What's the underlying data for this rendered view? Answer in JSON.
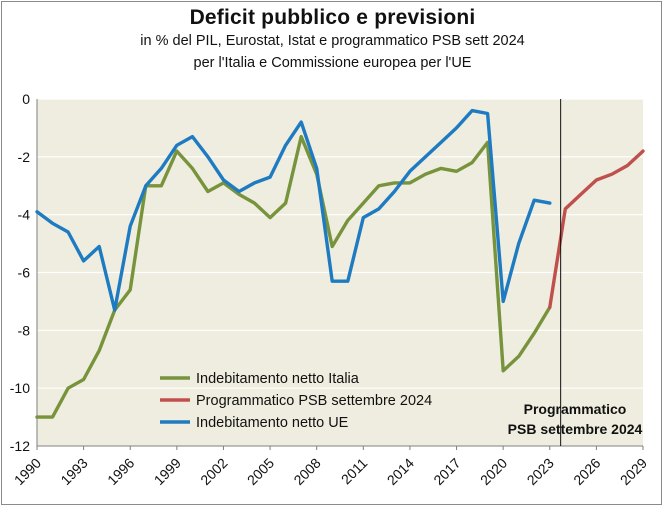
{
  "chart_data": {
    "type": "line",
    "title": "Deficit pubblico  e previsioni",
    "subtitle_lines": [
      "in % del PIL, Eurostat, Istat e programmatico PSB sett 2024",
      "per l'Italia e Commissione europea per l'UE"
    ],
    "xlabel": "",
    "ylabel": "",
    "xlim": [
      1990,
      2029
    ],
    "ylim": [
      -12,
      0
    ],
    "y_ticks": [
      0,
      -2,
      -4,
      -6,
      -8,
      -10,
      -12
    ],
    "x_ticks": [
      1990,
      1993,
      1996,
      1999,
      2002,
      2005,
      2008,
      2011,
      2014,
      2017,
      2020,
      2023,
      2026,
      2029
    ],
    "grid": "horizontal",
    "legend_position": "bottom-left",
    "annotation": {
      "lines": [
        "Programmatico",
        "PSB settembre 2024"
      ],
      "x": 2023.7
    },
    "series": [
      {
        "name": "Indebitamento netto Italia",
        "color": "#77933c",
        "x": [
          1990,
          1991,
          1992,
          1993,
          1994,
          1995,
          1996,
          1997,
          1998,
          1999,
          2000,
          2001,
          2002,
          2003,
          2004,
          2005,
          2006,
          2007,
          2008,
          2009,
          2010,
          2011,
          2012,
          2013,
          2014,
          2015,
          2016,
          2017,
          2018,
          2019,
          2020,
          2021,
          2022,
          2023
        ],
        "values": [
          -11.0,
          -11.0,
          -10.0,
          -9.7,
          -8.7,
          -7.3,
          -6.6,
          -3.0,
          -3.0,
          -1.8,
          -2.4,
          -3.2,
          -2.9,
          -3.3,
          -3.6,
          -4.1,
          -3.6,
          -1.3,
          -2.6,
          -5.1,
          -4.2,
          -3.6,
          -3.0,
          -2.9,
          -2.9,
          -2.6,
          -2.4,
          -2.5,
          -2.2,
          -1.5,
          -9.4,
          -8.9,
          -8.1,
          -7.2
        ]
      },
      {
        "name": "Programmatico PSB settembre 2024",
        "color": "#c0504d",
        "x": [
          2023,
          2024,
          2025,
          2026,
          2027,
          2028,
          2029
        ],
        "values": [
          -7.2,
          -3.8,
          -3.3,
          -2.8,
          -2.6,
          -2.3,
          -1.8
        ]
      },
      {
        "name": "Indebitamento netto UE",
        "color": "#1f7bc1",
        "x": [
          1990,
          1991,
          1992,
          1993,
          1994,
          1995,
          1996,
          1997,
          1998,
          1999,
          2000,
          2001,
          2002,
          2003,
          2004,
          2005,
          2006,
          2007,
          2008,
          2009,
          2010,
          2011,
          2012,
          2013,
          2014,
          2015,
          2016,
          2017,
          2018,
          2019,
          2020,
          2021,
          2022,
          2023
        ],
        "values": [
          -3.9,
          -4.3,
          -4.6,
          -5.6,
          -5.1,
          -7.3,
          -4.4,
          -3.0,
          -2.4,
          -1.6,
          -1.3,
          -2.0,
          -2.8,
          -3.2,
          -2.9,
          -2.7,
          -1.6,
          -0.8,
          -2.4,
          -6.3,
          -6.3,
          -4.1,
          -3.8,
          -3.2,
          -2.5,
          -2.0,
          -1.5,
          -1.0,
          -0.4,
          -0.5,
          -7.0,
          -5.0,
          -3.5,
          -3.6
        ]
      }
    ]
  }
}
